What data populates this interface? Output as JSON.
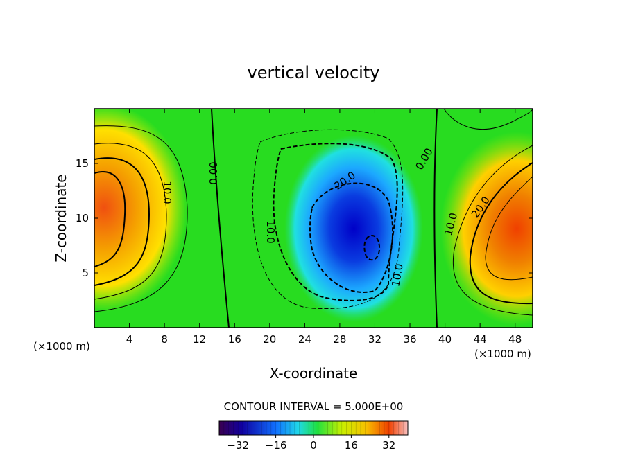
{
  "chart_data": {
    "type": "heatmap",
    "title": "vertical velocity",
    "xlabel": "X-coordinate",
    "ylabel": "Z-coordinate",
    "x_unit": "(×1000 m)",
    "y_unit": "(×1000 m)",
    "xlim": [
      0,
      50
    ],
    "ylim": [
      0,
      20
    ],
    "x_ticks": [
      4,
      8,
      12,
      16,
      20,
      24,
      28,
      32,
      36,
      40,
      44,
      48
    ],
    "y_ticks": [
      5,
      10,
      15
    ],
    "contour_interval_label": "CONTOUR INTERVAL = 5.000E+00",
    "contour_interval": 5,
    "contour_labels": [
      "10.0",
      "0.00",
      "10.0",
      "20.0",
      "10.0",
      "0.00",
      "10.0",
      "20.0"
    ],
    "colorbar": {
      "range": [
        -40,
        40
      ],
      "ticks": [
        -32,
        -16,
        0,
        16,
        32
      ],
      "tick_labels": [
        "−32",
        "−16",
        "0",
        "16",
        "32"
      ]
    },
    "features": [
      {
        "x": 0.5,
        "z": 12,
        "value": 28
      },
      {
        "x": 31.5,
        "z": 7.5,
        "value": -33
      },
      {
        "x": 48.5,
        "z": 9.5,
        "value": 30
      }
    ]
  }
}
